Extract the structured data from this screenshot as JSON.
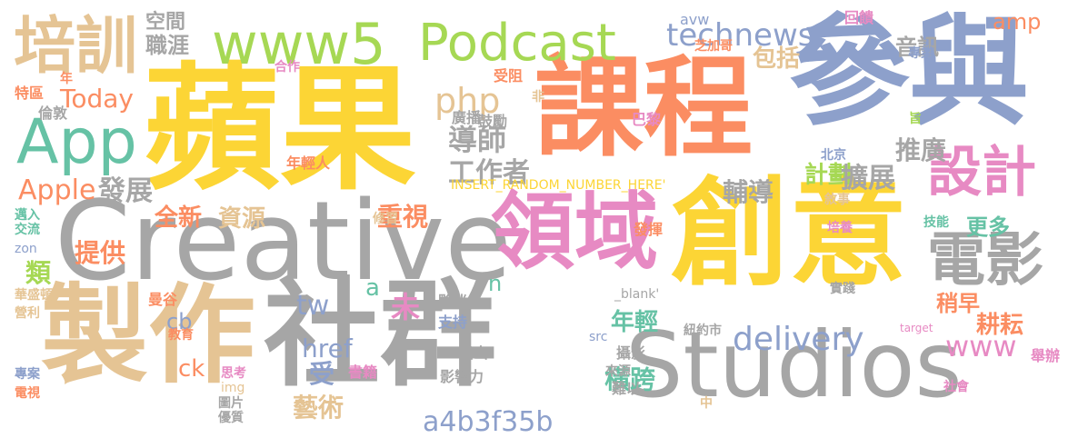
{
  "colors": {
    "gray": "#a6a6a6",
    "yellow": "#fcd535",
    "orange": "#fb8d62",
    "blue": "#8da0cb",
    "green": "#a6d854",
    "teal": "#66c2a5",
    "pink": "#e78ac3",
    "tan": "#e5c494"
  },
  "words": [
    {
      "text": "蘋果",
      "color": "yellow"
    },
    {
      "text": "課程",
      "color": "orange"
    },
    {
      "text": "參與",
      "color": "blue"
    },
    {
      "text": "Creative",
      "color": "gray"
    },
    {
      "text": "創意",
      "color": "yellow"
    },
    {
      "text": "製作",
      "color": "tan"
    },
    {
      "text": "社群",
      "color": "gray"
    },
    {
      "text": "Studios",
      "color": "gray"
    },
    {
      "text": "領域",
      "color": "pink"
    },
    {
      "text": "www5",
      "color": "green"
    },
    {
      "text": "Podcast",
      "color": "green"
    },
    {
      "text": "培訓",
      "color": "tan"
    },
    {
      "text": "App",
      "color": "teal"
    },
    {
      "text": "電影",
      "color": "gray"
    },
    {
      "text": "設計",
      "color": "pink"
    },
    {
      "text": "technews",
      "color": "blue"
    },
    {
      "text": "delivery",
      "color": "blue"
    },
    {
      "text": "php",
      "color": "tan"
    },
    {
      "text": "導師",
      "color": "gray"
    },
    {
      "text": "工作者",
      "color": "gray"
    },
    {
      "text": "推廣",
      "color": "gray"
    },
    {
      "text": "計劃",
      "color": "green"
    },
    {
      "text": "擴展",
      "color": "gray"
    },
    {
      "text": "輔導",
      "color": "gray"
    },
    {
      "text": "Apple",
      "color": "orange"
    },
    {
      "text": "發展",
      "color": "gray"
    },
    {
      "text": "Today",
      "color": "orange"
    },
    {
      "text": "空間",
      "color": "gray"
    },
    {
      "text": "職涯",
      "color": "gray"
    },
    {
      "text": "音訊",
      "color": "gray"
    },
    {
      "text": "包括",
      "color": "tan"
    },
    {
      "text": "amp",
      "color": "orange"
    },
    {
      "text": "全新",
      "color": "orange"
    },
    {
      "text": "資源",
      "color": "tan"
    },
    {
      "text": "重視",
      "color": "orange"
    },
    {
      "text": "提供",
      "color": "orange"
    },
    {
      "text": "更多",
      "color": "teal"
    },
    {
      "text": "tw",
      "color": "blue"
    },
    {
      "text": "www",
      "color": "pink"
    },
    {
      "text": "稍早",
      "color": "orange"
    },
    {
      "text": "耕耘",
      "color": "orange"
    },
    {
      "text": "年輕",
      "color": "teal"
    },
    {
      "text": "藝術",
      "color": "tan"
    },
    {
      "text": "橫跨",
      "color": "teal"
    },
    {
      "text": "a4b3f35b",
      "color": "blue"
    },
    {
      "text": "href",
      "color": "blue"
    },
    {
      "text": "受",
      "color": "blue"
    },
    {
      "text": "未",
      "color": "pink"
    },
    {
      "text": "a",
      "color": "teal"
    },
    {
      "text": "n",
      "color": "teal"
    },
    {
      "text": "cb",
      "color": "blue"
    },
    {
      "text": "ck",
      "color": "orange"
    },
    {
      "text": "類",
      "color": "green"
    },
    {
      "text": "INSERT_RANDOM_NUMBER_HERE'",
      "color": "yellow"
    },
    {
      "text": "avw",
      "color": "blue"
    },
    {
      "text": "回饋",
      "color": "pink"
    },
    {
      "text": "芝加哥",
      "color": "orange"
    },
    {
      "text": "專業",
      "color": "blue"
    },
    {
      "text": "旨",
      "color": "green"
    },
    {
      "text": "受阻",
      "color": "orange"
    },
    {
      "text": "非",
      "color": "tan"
    },
    {
      "text": "合作",
      "color": "pink"
    },
    {
      "text": "年",
      "color": "orange"
    },
    {
      "text": "特區",
      "color": "orange"
    },
    {
      "text": "倫敦",
      "color": "gray"
    },
    {
      "text": "廣播",
      "color": "gray"
    },
    {
      "text": "鼓勵",
      "color": "gray"
    },
    {
      "text": "巴黎",
      "color": "pink"
    },
    {
      "text": "北京",
      "color": "blue"
    },
    {
      "text": "年輕人",
      "color": "orange"
    },
    {
      "text": "敘事",
      "color": "tan"
    },
    {
      "text": "培養",
      "color": "pink"
    },
    {
      "text": "邁入",
      "color": "teal"
    },
    {
      "text": "交流",
      "color": "teal"
    },
    {
      "text": "zon",
      "color": "blue"
    },
    {
      "text": "發揮",
      "color": "orange"
    },
    {
      "text": "修習",
      "color": "tan"
    },
    {
      "text": "技能",
      "color": "teal"
    },
    {
      "text": "華盛頓",
      "color": "tan"
    },
    {
      "text": "曼谷",
      "color": "orange"
    },
    {
      "text": "營利",
      "color": "tan"
    },
    {
      "text": "夥伴",
      "color": "gray"
    },
    {
      "text": "_blank'",
      "color": "gray"
    },
    {
      "text": "實踐",
      "color": "gray"
    },
    {
      "text": "支持",
      "color": "blue"
    },
    {
      "text": "教育",
      "color": "orange"
    },
    {
      "text": "紐約市",
      "color": "gray"
    },
    {
      "text": "target",
      "color": "pink"
    },
    {
      "text": "專案",
      "color": "blue"
    },
    {
      "text": "思考",
      "color": "pink"
    },
    {
      "text": "src",
      "color": "blue"
    },
    {
      "text": "攝影",
      "color": "gray"
    },
    {
      "text": "指出",
      "color": "gray"
    },
    {
      "text": "舉辦",
      "color": "pink"
    },
    {
      "text": "電視",
      "color": "orange"
    },
    {
      "text": "img",
      "color": "tan"
    },
    {
      "text": "書籍",
      "color": "pink"
    },
    {
      "text": "影響力",
      "color": "gray"
    },
    {
      "text": "來源",
      "color": "gray"
    },
    {
      "text": "難以",
      "color": "gray"
    },
    {
      "text": "中",
      "color": "tan"
    },
    {
      "text": "社會",
      "color": "pink"
    },
    {
      "text": "圖片",
      "color": "gray"
    },
    {
      "text": "優質",
      "color": "gray"
    }
  ]
}
